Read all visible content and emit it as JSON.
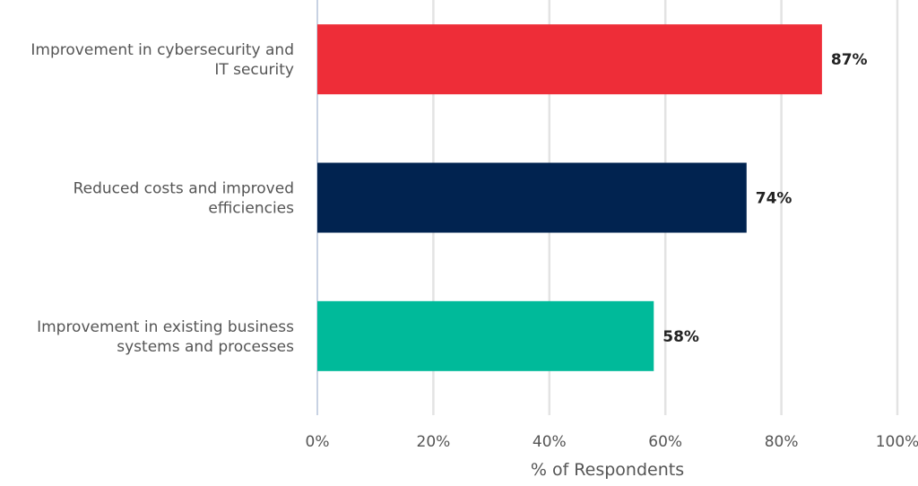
{
  "chart_data": {
    "type": "bar",
    "orientation": "horizontal",
    "categories": [
      [
        "Improvement in cybersecurity and",
        "IT security"
      ],
      [
        "Reduced costs and improved",
        "efficiencies"
      ],
      [
        "Improvement in existing business",
        "systems and processes"
      ]
    ],
    "values": [
      87,
      74,
      58
    ],
    "data_labels": [
      "87%",
      "74%",
      "58%"
    ],
    "colors": [
      "#ee2d38",
      "#012350",
      "#00ba9a"
    ],
    "xlabel": "% of Respondents",
    "xlim": [
      0,
      100
    ],
    "xticks": [
      0,
      20,
      40,
      60,
      80,
      100
    ],
    "xtick_labels": [
      "0%",
      "20%",
      "40%",
      "60%",
      "80%",
      "100%"
    ],
    "grid": true,
    "legend": "none"
  }
}
